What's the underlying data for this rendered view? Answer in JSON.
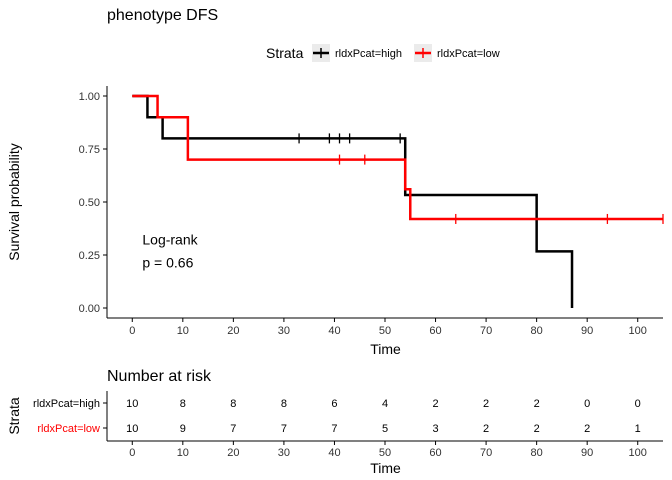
{
  "chart_data": {
    "type": "line",
    "title": "phenotype DFS",
    "xlabel": "Time",
    "ylabel": "Survival probability",
    "xlim": [
      -5,
      105
    ],
    "ylim": [
      0,
      1
    ],
    "x_ticks": [
      "0",
      "10",
      "20",
      "30",
      "40",
      "50",
      "60",
      "70",
      "80",
      "90",
      "100"
    ],
    "y_ticks": [
      "0.00",
      "0.25",
      "0.50",
      "0.75",
      "1.00"
    ],
    "legend": {
      "title": "Strata",
      "position": "top",
      "entries": [
        "rldxPcat=high",
        "rldxPcat=low"
      ]
    },
    "annotation": {
      "line1": "Log-rank",
      "line2": "p = 0.66",
      "x": 2,
      "y1": 0.3,
      "y2": 0.19
    },
    "series": [
      {
        "name": "rldxPcat=high",
        "color": "#000000",
        "steps": [
          [
            0,
            1.0
          ],
          [
            3,
            0.9
          ],
          [
            6,
            0.8
          ],
          [
            54,
            0.533
          ],
          [
            80,
            0.267
          ],
          [
            87,
            0.0
          ]
        ],
        "end_x": 87,
        "censor_x": [
          33,
          39,
          41,
          43,
          53
        ]
      },
      {
        "name": "rldxPcat=low",
        "color": "#ff0000",
        "steps": [
          [
            0,
            1.0
          ],
          [
            5,
            0.9
          ],
          [
            11,
            0.7
          ],
          [
            54,
            0.56
          ],
          [
            55,
            0.42
          ]
        ],
        "end_x": 105,
        "censor_x": [
          41,
          46,
          64,
          94,
          105
        ]
      }
    ]
  },
  "risk_table": {
    "title": "Number at risk",
    "ylabel": "Strata",
    "xlabel": "Time",
    "times": [
      "0",
      "10",
      "20",
      "30",
      "40",
      "50",
      "60",
      "70",
      "80",
      "90",
      "100"
    ],
    "rows": [
      {
        "name": "rldxPcat=high",
        "color": "#000000",
        "values": [
          "10",
          "8",
          "8",
          "8",
          "6",
          "4",
          "2",
          "2",
          "2",
          "0",
          "0"
        ]
      },
      {
        "name": "rldxPcat=low",
        "color": "#ff0000",
        "values": [
          "10",
          "9",
          "7",
          "7",
          "7",
          "5",
          "3",
          "2",
          "2",
          "2",
          "1"
        ]
      }
    ]
  }
}
